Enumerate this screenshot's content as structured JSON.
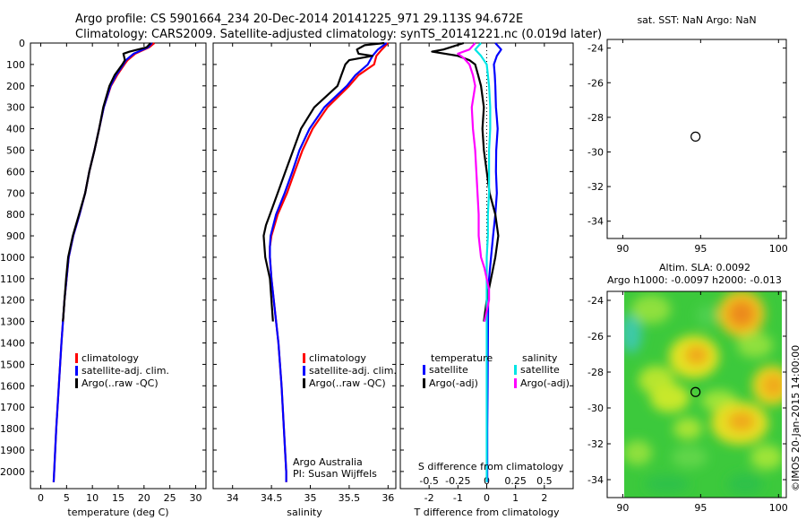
{
  "header": {
    "line1": "Argo profile: CS 5901664_234 20-Dec-2014 20141225_971 29.113S 94.672E",
    "line2": "Climatology: CARS2009. Satellite-adjusted climatology: synTS_20141221.nc (0.019d later)"
  },
  "colors": {
    "climatology": "#ff0000",
    "satellite": "#0000ff",
    "argo": "#000000",
    "sal_satellite": "#00e5e5",
    "sal_argo": "#ff00ff"
  },
  "chart_data": [
    {
      "id": "temperature",
      "type": "line",
      "xlabel": "temperature (deg C)",
      "ylabel": "",
      "xlim": [
        -2,
        32
      ],
      "ylim": [
        2080,
        0
      ],
      "xticks": [
        "0",
        "5",
        "10",
        "15",
        "20",
        "25",
        "30"
      ],
      "xtick_values": [
        0,
        5,
        10,
        15,
        20,
        25,
        30
      ],
      "yticks": [
        "0",
        "100",
        "200",
        "300",
        "400",
        "500",
        "600",
        "700",
        "800",
        "900",
        "1000",
        "1100",
        "1200",
        "1300",
        "1400",
        "1500",
        "1600",
        "1700",
        "1800",
        "1900",
        "2000"
      ],
      "ytick_values": [
        0,
        100,
        200,
        300,
        400,
        500,
        600,
        700,
        800,
        900,
        1000,
        1100,
        1200,
        1300,
        1400,
        1500,
        1600,
        1700,
        1800,
        1900,
        2000
      ],
      "legend": {
        "placement": "lower-left",
        "entries": [
          "climatology",
          "satellite-adj. clim.",
          "Argo(..raw -QC)"
        ]
      },
      "series": [
        {
          "name": "climatology",
          "color": "#ff0000",
          "depth": [
            0,
            20,
            50,
            80,
            100,
            150,
            200,
            300,
            400,
            500,
            600,
            700,
            800,
            900,
            1000,
            1200,
            1400,
            1600,
            1800,
            2000,
            2050
          ],
          "values": [
            22.0,
            21.0,
            18.3,
            16.8,
            16.2,
            14.8,
            13.6,
            12.2,
            11.3,
            10.4,
            9.4,
            8.6,
            7.5,
            6.3,
            5.4,
            4.6,
            4.0,
            3.5,
            3.0,
            2.6,
            2.5
          ]
        },
        {
          "name": "satellite-adj. clim.",
          "color": "#0000ff",
          "depth": [
            0,
            20,
            50,
            80,
            100,
            150,
            200,
            300,
            400,
            500,
            600,
            700,
            800,
            900,
            1000,
            1200,
            1400,
            1600,
            1800,
            2000,
            2050
          ],
          "values": [
            21.5,
            20.8,
            18.0,
            16.5,
            16.0,
            14.6,
            13.5,
            12.2,
            11.3,
            10.4,
            9.4,
            8.6,
            7.5,
            6.3,
            5.4,
            4.6,
            4.0,
            3.5,
            3.0,
            2.6,
            2.5
          ]
        },
        {
          "name": "Argo(..raw -QC)",
          "color": "#000000",
          "depth": [
            0,
            20,
            40,
            50,
            80,
            100,
            150,
            200,
            300,
            400,
            500,
            600,
            700,
            800,
            900,
            1000,
            1100,
            1200,
            1300
          ],
          "values": [
            21.3,
            20.5,
            17.2,
            16.0,
            16.3,
            15.8,
            14.3,
            13.3,
            12.1,
            11.3,
            10.4,
            9.4,
            8.6,
            7.4,
            6.2,
            5.3,
            4.9,
            4.6,
            4.3
          ]
        }
      ]
    },
    {
      "id": "salinity",
      "type": "line",
      "xlabel": "salinity",
      "ylabel": "",
      "xlim": [
        33.75,
        36.1
      ],
      "ylim": [
        2080,
        0
      ],
      "xticks": [
        "34",
        "34.5",
        "35",
        "35.5",
        "36"
      ],
      "xtick_values": [
        34,
        34.5,
        35,
        35.5,
        36
      ],
      "legend": {
        "placement": "lower-right",
        "entries": [
          "climatology",
          "satellite-adj. clim.",
          "Argo(..raw -QC)"
        ]
      },
      "annotations": [
        "Argo Australia",
        "PI: Susan Wijffels"
      ],
      "series": [
        {
          "name": "climatology",
          "color": "#ff0000",
          "depth": [
            0,
            30,
            60,
            100,
            150,
            200,
            300,
            400,
            500,
            600,
            700,
            800,
            900,
            950,
            1000,
            1100,
            1200,
            1400,
            1600,
            1800,
            2000,
            2050
          ],
          "values": [
            36.0,
            35.92,
            35.85,
            35.82,
            35.62,
            35.5,
            35.22,
            35.03,
            34.9,
            34.8,
            34.7,
            34.58,
            34.5,
            34.48,
            34.48,
            34.5,
            34.53,
            34.59,
            34.63,
            34.66,
            34.69,
            34.69
          ]
        },
        {
          "name": "satellite-adj. clim.",
          "color": "#0000ff",
          "depth": [
            0,
            30,
            60,
            100,
            150,
            200,
            300,
            400,
            500,
            600,
            700,
            800,
            900,
            950,
            1000,
            1100,
            1200,
            1400,
            1600,
            1800,
            2000,
            2050
          ],
          "values": [
            35.98,
            35.87,
            35.8,
            35.74,
            35.58,
            35.47,
            35.18,
            34.99,
            34.86,
            34.77,
            34.67,
            34.56,
            34.49,
            34.48,
            34.48,
            34.5,
            34.53,
            34.59,
            34.63,
            34.66,
            34.69,
            34.69
          ]
        },
        {
          "name": "Argo(..raw -QC)",
          "color": "#000000",
          "depth": [
            0,
            10,
            30,
            50,
            60,
            80,
            100,
            150,
            200,
            300,
            400,
            500,
            600,
            700,
            800,
            850,
            900,
            950,
            1000,
            1050,
            1100,
            1200,
            1300
          ],
          "values": [
            35.95,
            35.7,
            35.6,
            35.62,
            35.8,
            35.5,
            35.45,
            35.4,
            35.35,
            35.05,
            34.88,
            34.78,
            34.68,
            34.58,
            34.48,
            34.43,
            34.4,
            34.41,
            34.42,
            34.45,
            34.48,
            34.5,
            34.52
          ]
        }
      ]
    },
    {
      "id": "difference",
      "type": "line",
      "xlabel": "T difference from climatology",
      "title2": "S difference from climatology",
      "xlim": [
        -3,
        3
      ],
      "x2lim": [
        -0.75,
        0.75
      ],
      "ylim": [
        2080,
        0
      ],
      "xticks": [
        "-2",
        "-1",
        "0",
        "1",
        "2"
      ],
      "xtick_values": [
        -2,
        -1,
        0,
        1,
        2
      ],
      "x2ticks": [
        "-0.5",
        "-0.25",
        "0",
        "0.25",
        "0.5"
      ],
      "x2tick_values": [
        -0.5,
        -0.25,
        0,
        0.25,
        0.5
      ],
      "legend": {
        "placement": "lower-center",
        "headers": [
          "temperature",
          "salinity"
        ],
        "entries": [
          "satellite",
          "Argo(-adj)",
          "satellite",
          "Argo(-adj)"
        ]
      },
      "series": [
        {
          "name": "T satellite",
          "color": "#0000ff",
          "axis": "T",
          "depth": [
            0,
            30,
            60,
            100,
            150,
            200,
            300,
            350,
            400,
            500,
            600,
            700,
            800,
            900,
            1000,
            1100,
            1200,
            1400,
            1600,
            1800,
            2000,
            2050
          ],
          "values": [
            0.3,
            0.5,
            0.35,
            0.25,
            0.28,
            0.3,
            0.32,
            0.35,
            0.38,
            0.33,
            0.32,
            0.35,
            0.3,
            0.22,
            0.15,
            0.08,
            0.05,
            0.04,
            0.03,
            0.02,
            0.02,
            0.02
          ]
        },
        {
          "name": "T Argo(-adj)",
          "color": "#000000",
          "axis": "T",
          "depth": [
            0,
            30,
            40,
            60,
            80,
            100,
            150,
            200,
            300,
            400,
            500,
            600,
            700,
            800,
            900,
            1000,
            1100,
            1200,
            1300
          ],
          "values": [
            -0.8,
            -1.5,
            -1.9,
            -1.0,
            -0.6,
            -0.4,
            -0.3,
            -0.2,
            -0.1,
            -0.15,
            -0.1,
            0.0,
            0.1,
            0.3,
            0.4,
            0.3,
            0.15,
            0.0,
            -0.1
          ]
        },
        {
          "name": "S satellite",
          "color": "#00e5e5",
          "axis": "S",
          "depth": [
            0,
            30,
            60,
            100,
            150,
            200,
            300,
            400,
            500,
            600,
            700,
            800,
            900,
            1000,
            1200,
            1400,
            1600,
            1800,
            2000,
            2050
          ],
          "values": [
            -0.05,
            -0.1,
            -0.05,
            0.0,
            0.01,
            0.02,
            0.03,
            0.03,
            0.02,
            0.02,
            0.02,
            0.01,
            0.01,
            0.0,
            0.0,
            0.0,
            0.0,
            0.0,
            0.0,
            0.0
          ]
        },
        {
          "name": "S Argo(-adj)",
          "color": "#ff00ff",
          "axis": "S",
          "depth": [
            0,
            30,
            50,
            70,
            100,
            150,
            200,
            300,
            400,
            500,
            600,
            700,
            800,
            900,
            950,
            1000,
            1050,
            1100,
            1150,
            1200,
            1250,
            1300
          ],
          "values": [
            -0.1,
            -0.15,
            -0.25,
            -0.2,
            -0.15,
            -0.12,
            -0.1,
            -0.13,
            -0.12,
            -0.1,
            -0.09,
            -0.08,
            -0.07,
            -0.07,
            -0.06,
            -0.05,
            -0.02,
            0.0,
            0.02,
            0.02,
            0.0,
            -0.02
          ]
        }
      ]
    },
    {
      "id": "sst_map",
      "type": "scatter",
      "title": "sat. SST: NaN Argo: NaN",
      "xlim": [
        89,
        100.5
      ],
      "ylim": [
        -35,
        -23.5
      ],
      "xticks": [
        "90",
        "95",
        "100"
      ],
      "xtick_values": [
        90,
        95,
        100
      ],
      "yticks": [
        "-24",
        "-26",
        "-28",
        "-30",
        "-32",
        "-34"
      ],
      "ytick_values": [
        -24,
        -26,
        -28,
        -30,
        -32,
        -34
      ],
      "points": [
        {
          "x": 94.672,
          "y": -29.113
        }
      ]
    },
    {
      "id": "sla_map",
      "type": "heatmap",
      "title": "Altim. SLA: 0.0092",
      "subtitle": "Argo h1000: -0.0097 h2000: -0.013",
      "xlim": [
        89,
        100.5
      ],
      "ylim": [
        -35,
        -23.5
      ],
      "xticks": [
        "90",
        "95",
        "100"
      ],
      "xtick_values": [
        90,
        95,
        100
      ],
      "yticks": [
        "-24",
        "-26",
        "-28",
        "-30",
        "-32",
        "-34"
      ],
      "ytick_values": [
        -24,
        -26,
        -28,
        -30,
        -32,
        -34
      ],
      "field_lon": [
        90,
        100.5
      ],
      "field_lat": [
        -35,
        -23.5
      ],
      "points": [
        {
          "x": 94.672,
          "y": -29.113
        }
      ],
      "watermark": "©IMOS 20-Jan-2015 14:00:00"
    }
  ]
}
